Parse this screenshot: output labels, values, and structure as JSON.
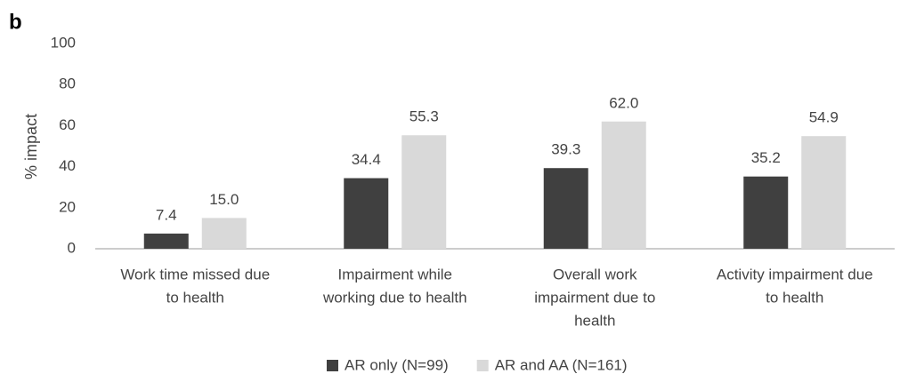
{
  "chart_data": {
    "type": "bar",
    "panel_label": "b",
    "ylabel": "% impact",
    "categories": [
      [
        "Work time missed due",
        "to health"
      ],
      [
        "Impairment while",
        "working due to health"
      ],
      [
        "Overall work",
        "impairment due to",
        "health"
      ],
      [
        "Activity impairment due",
        "to health"
      ]
    ],
    "series": [
      {
        "name": "AR only (N=99)",
        "color": "#404040",
        "values": [
          7.4,
          34.4,
          39.3,
          35.2
        ],
        "value_labels": [
          "7.4",
          "34.4",
          "39.3",
          "35.2"
        ]
      },
      {
        "name": "AR and AA (N=161)",
        "color": "#d9d9d9",
        "values": [
          15.0,
          55.3,
          62.0,
          54.9
        ],
        "value_labels": [
          "15.0",
          "55.3",
          "62.0",
          "54.9"
        ]
      }
    ],
    "ylim": [
      0,
      100
    ],
    "yticks": [
      0,
      20,
      40,
      60,
      80,
      100
    ],
    "grid": false,
    "legend": "bottom"
  }
}
